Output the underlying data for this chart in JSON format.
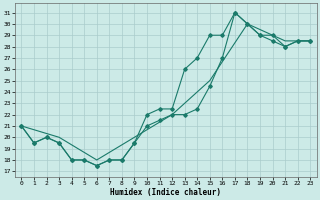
{
  "xlabel": "Humidex (Indice chaleur)",
  "ylabel": "",
  "bg_color": "#cceae7",
  "grid_color": "#aacccc",
  "line_color": "#1a7a6a",
  "xlim": [
    -0.5,
    23.5
  ],
  "ylim": [
    16.5,
    31.8
  ],
  "xticks": [
    0,
    1,
    2,
    3,
    4,
    5,
    6,
    7,
    8,
    9,
    10,
    11,
    12,
    13,
    14,
    15,
    16,
    17,
    18,
    19,
    20,
    21,
    22,
    23
  ],
  "yticks": [
    17,
    18,
    19,
    20,
    21,
    22,
    23,
    24,
    25,
    26,
    27,
    28,
    29,
    30,
    31
  ],
  "series": [
    {
      "x": [
        0,
        1,
        2,
        3,
        4,
        5,
        6,
        7,
        8,
        9,
        10,
        11,
        12,
        13,
        14,
        15,
        16,
        17,
        18,
        19,
        20,
        21,
        22,
        23
      ],
      "y": [
        21,
        19.5,
        20,
        19.5,
        18,
        18,
        17.5,
        18,
        18,
        19.5,
        22,
        22.5,
        22.5,
        26,
        27,
        29,
        29,
        31,
        30,
        29,
        28.5,
        28,
        28.5,
        28.5
      ]
    },
    {
      "x": [
        0,
        1,
        2,
        3,
        4,
        5,
        6,
        7,
        8,
        9,
        10,
        11,
        12,
        13,
        14,
        15,
        16,
        17,
        18,
        19,
        20,
        21,
        22,
        23
      ],
      "y": [
        21,
        19.5,
        20,
        19.5,
        18,
        18,
        17.5,
        18,
        18,
        19.5,
        21,
        21.5,
        22,
        22,
        22.5,
        24.5,
        27,
        31,
        30,
        29,
        29,
        28,
        28.5,
        28.5
      ]
    },
    {
      "x": [
        0,
        3,
        6,
        9,
        12,
        15,
        18,
        21,
        23
      ],
      "y": [
        21,
        20,
        18,
        20,
        22,
        25,
        30,
        28.5,
        28.5
      ]
    }
  ]
}
